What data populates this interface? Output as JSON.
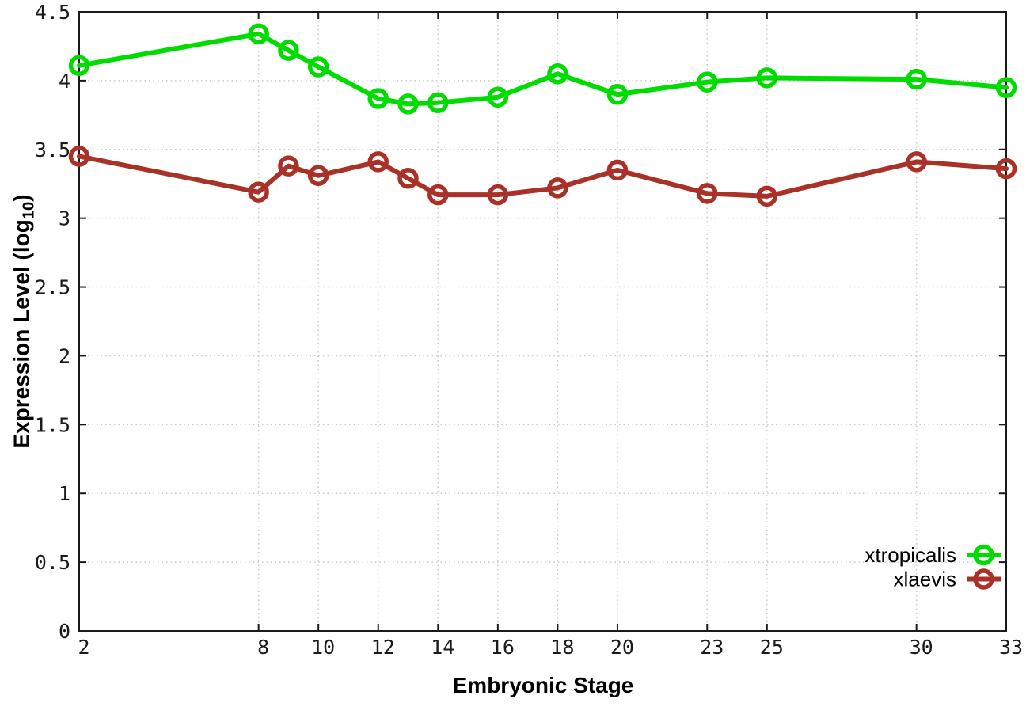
{
  "window": {
    "background": "#ffffff"
  },
  "chart_data": {
    "type": "line",
    "title": "",
    "xlabel": "Embryonic Stage",
    "ylabel": "Expression Level (log10)",
    "ylabel_parts": {
      "prefix": "Expression Level (log",
      "subscript": "10",
      "suffix": ")"
    },
    "x": [
      2,
      8,
      9,
      10,
      12,
      13,
      14,
      16,
      18,
      20,
      23,
      25,
      30,
      33
    ],
    "xticks": [
      2,
      8,
      10,
      12,
      14,
      16,
      18,
      20,
      23,
      25,
      30,
      33
    ],
    "yticks": [
      0,
      0.5,
      1,
      1.5,
      2,
      2.5,
      3,
      3.5,
      4,
      4.5
    ],
    "xlim": [
      2,
      33
    ],
    "ylim": [
      0,
      4.5
    ],
    "grid": "dotted",
    "legend_position": "inside-bottom-right",
    "series": [
      {
        "name": "xtropicalis",
        "color": "#00dc00",
        "marker": "open-circle",
        "values": [
          4.11,
          4.34,
          4.22,
          4.1,
          3.87,
          3.83,
          3.84,
          3.88,
          4.05,
          3.9,
          3.99,
          4.02,
          4.01,
          3.95
        ]
      },
      {
        "name": "xlaevis",
        "color": "#a93128",
        "marker": "open-circle",
        "values": [
          3.45,
          3.19,
          3.38,
          3.31,
          3.41,
          3.29,
          3.17,
          3.17,
          3.22,
          3.35,
          3.18,
          3.16,
          3.41,
          3.36
        ]
      }
    ],
    "colors": {
      "grid": "#c9c9c9",
      "border": "#1a1a1a",
      "tick_text": "#1a1a1a"
    }
  }
}
